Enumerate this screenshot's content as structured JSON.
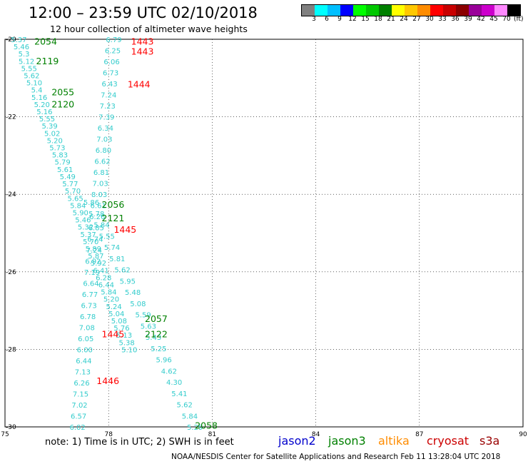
{
  "header": {
    "title": "12:00 – 23:59 UTC 02/10/2018",
    "subtitle": "12 hour collection of altimeter wave heights",
    "unit": "(ft)"
  },
  "colorbar": {
    "colors": [
      "#808080",
      "#00ffff",
      "#00bfff",
      "#0000ff",
      "#00ff00",
      "#00c800",
      "#008000",
      "#ffff00",
      "#ffc800",
      "#ff8c00",
      "#ff0000",
      "#c80000",
      "#8b0000",
      "#990099",
      "#cc00cc",
      "#ff88ff",
      "#000000"
    ],
    "labels": [
      "3",
      "6",
      "9",
      "12",
      "15",
      "18",
      "21",
      "24",
      "27",
      "30",
      "33",
      "36",
      "39",
      "42",
      "45",
      "70"
    ]
  },
  "map": {
    "lon_range": [
      75,
      90
    ],
    "lat_range": [
      -30,
      -20
    ],
    "lon_ticks": [
      "75",
      "78",
      "81",
      "84",
      "87",
      "90"
    ],
    "lat_ticks": [
      "-20",
      "-22",
      "-24",
      "-26",
      "-28",
      "-30"
    ],
    "track_color": "#33cccc",
    "tracks": [
      {
        "name": "track-a",
        "start": [
          75.4,
          -20.0
        ],
        "end": [
          78.6,
          -28.0
        ],
        "values": [
          "5.37",
          "5.46",
          "5.3",
          "5.12",
          "5.55",
          "5.62",
          "5.10",
          "5.4",
          "5.16",
          "5.20",
          "5.16",
          "5.55",
          "5.39",
          "5.02",
          "5.20",
          "5.73",
          "5.83",
          "5.79",
          "5.61",
          "5.49",
          "5.77",
          "5.70",
          "5.65",
          "5.84",
          "5.90",
          "5.46",
          "5.32",
          "5.37",
          "5.70",
          "5.89",
          "5.87",
          "5.92",
          "6.41",
          "6.28",
          "6.44",
          "5.84",
          "5.20",
          "5.24",
          "5.04",
          "5.08",
          "5.76",
          "5.13",
          "5.38",
          "5.10"
        ]
      },
      {
        "name": "track-b",
        "start": [
          77.5,
          -24.2
        ],
        "end": [
          80.5,
          -30.0
        ],
        "values": [
          "5.86",
          "5.78",
          "5.84",
          "5.55",
          "5.74",
          "5.81",
          "5.62",
          "5.95",
          "5.48",
          "5.08",
          "5.59",
          "5.63",
          "5.43",
          "5.25",
          "5.96",
          "4.62",
          "4.30",
          "5.41",
          "5.62",
          "5.84",
          "5.29"
        ]
      },
      {
        "name": "track-c",
        "start": [
          78.15,
          -20.0
        ],
        "end": [
          77.1,
          -30.0
        ],
        "values": [
          "6.79",
          "6.25",
          "6.06",
          "6.73",
          "6.43",
          "7.24",
          "7.23",
          "7.39",
          "6.34",
          "7.03",
          "6.80",
          "6.62",
          "6.81",
          "7.03",
          "8.03",
          "6.61",
          "6.26",
          "6.85",
          "6.74",
          "7.24",
          "6.92",
          "7.19",
          "6.64",
          "6.77",
          "6.73",
          "6.78",
          "7.08",
          "6.05",
          "6.00",
          "6.44",
          "7.13",
          "6.26",
          "7.15",
          "7.02",
          "6.57",
          "6.02"
        ]
      }
    ],
    "labels": [
      {
        "text": "2054",
        "lon": 75.85,
        "lat": -20.05,
        "color": "#008000"
      },
      {
        "text": "2119",
        "lon": 75.9,
        "lat": -20.55,
        "color": "#008000"
      },
      {
        "text": "2055",
        "lon": 76.35,
        "lat": -21.35,
        "color": "#008000"
      },
      {
        "text": "2120",
        "lon": 76.35,
        "lat": -21.67,
        "color": "#008000"
      },
      {
        "text": "1443",
        "lon": 78.65,
        "lat": -20.05,
        "color": "#ff0000"
      },
      {
        "text": "1443",
        "lon": 78.65,
        "lat": -20.3,
        "color": "#ff0000"
      },
      {
        "text": "1444",
        "lon": 78.55,
        "lat": -21.15,
        "color": "#ff0000"
      },
      {
        "text": "2056",
        "lon": 77.8,
        "lat": -24.25,
        "color": "#008000"
      },
      {
        "text": "2121",
        "lon": 77.8,
        "lat": -24.6,
        "color": "#008000"
      },
      {
        "text": "1445",
        "lon": 78.15,
        "lat": -24.9,
        "color": "#ff0000"
      },
      {
        "text": "2057",
        "lon": 79.05,
        "lat": -27.2,
        "color": "#008000"
      },
      {
        "text": "2122",
        "lon": 79.05,
        "lat": -27.6,
        "color": "#008000"
      },
      {
        "text": "1445",
        "lon": 77.8,
        "lat": -27.6,
        "color": "#ff0000"
      },
      {
        "text": "1446",
        "lon": 77.65,
        "lat": -28.8,
        "color": "#ff0000"
      },
      {
        "text": "2058",
        "lon": 80.5,
        "lat": -29.95,
        "color": "#008000"
      }
    ]
  },
  "note": "note: 1) Time is in UTC; 2) SWH is in feet",
  "legend": [
    {
      "name": "jason2",
      "color": "#0000cc"
    },
    {
      "name": "jason3",
      "color": "#008000"
    },
    {
      "name": "altika",
      "color": "#ff8c00"
    },
    {
      "name": "cryosat",
      "color": "#cc0000"
    },
    {
      "name": "s3a",
      "color": "#990000"
    }
  ],
  "credit": "NOAA/NESDIS Center for Satellite Applications and Research    Feb 11 13:28:04 UTC 2018"
}
